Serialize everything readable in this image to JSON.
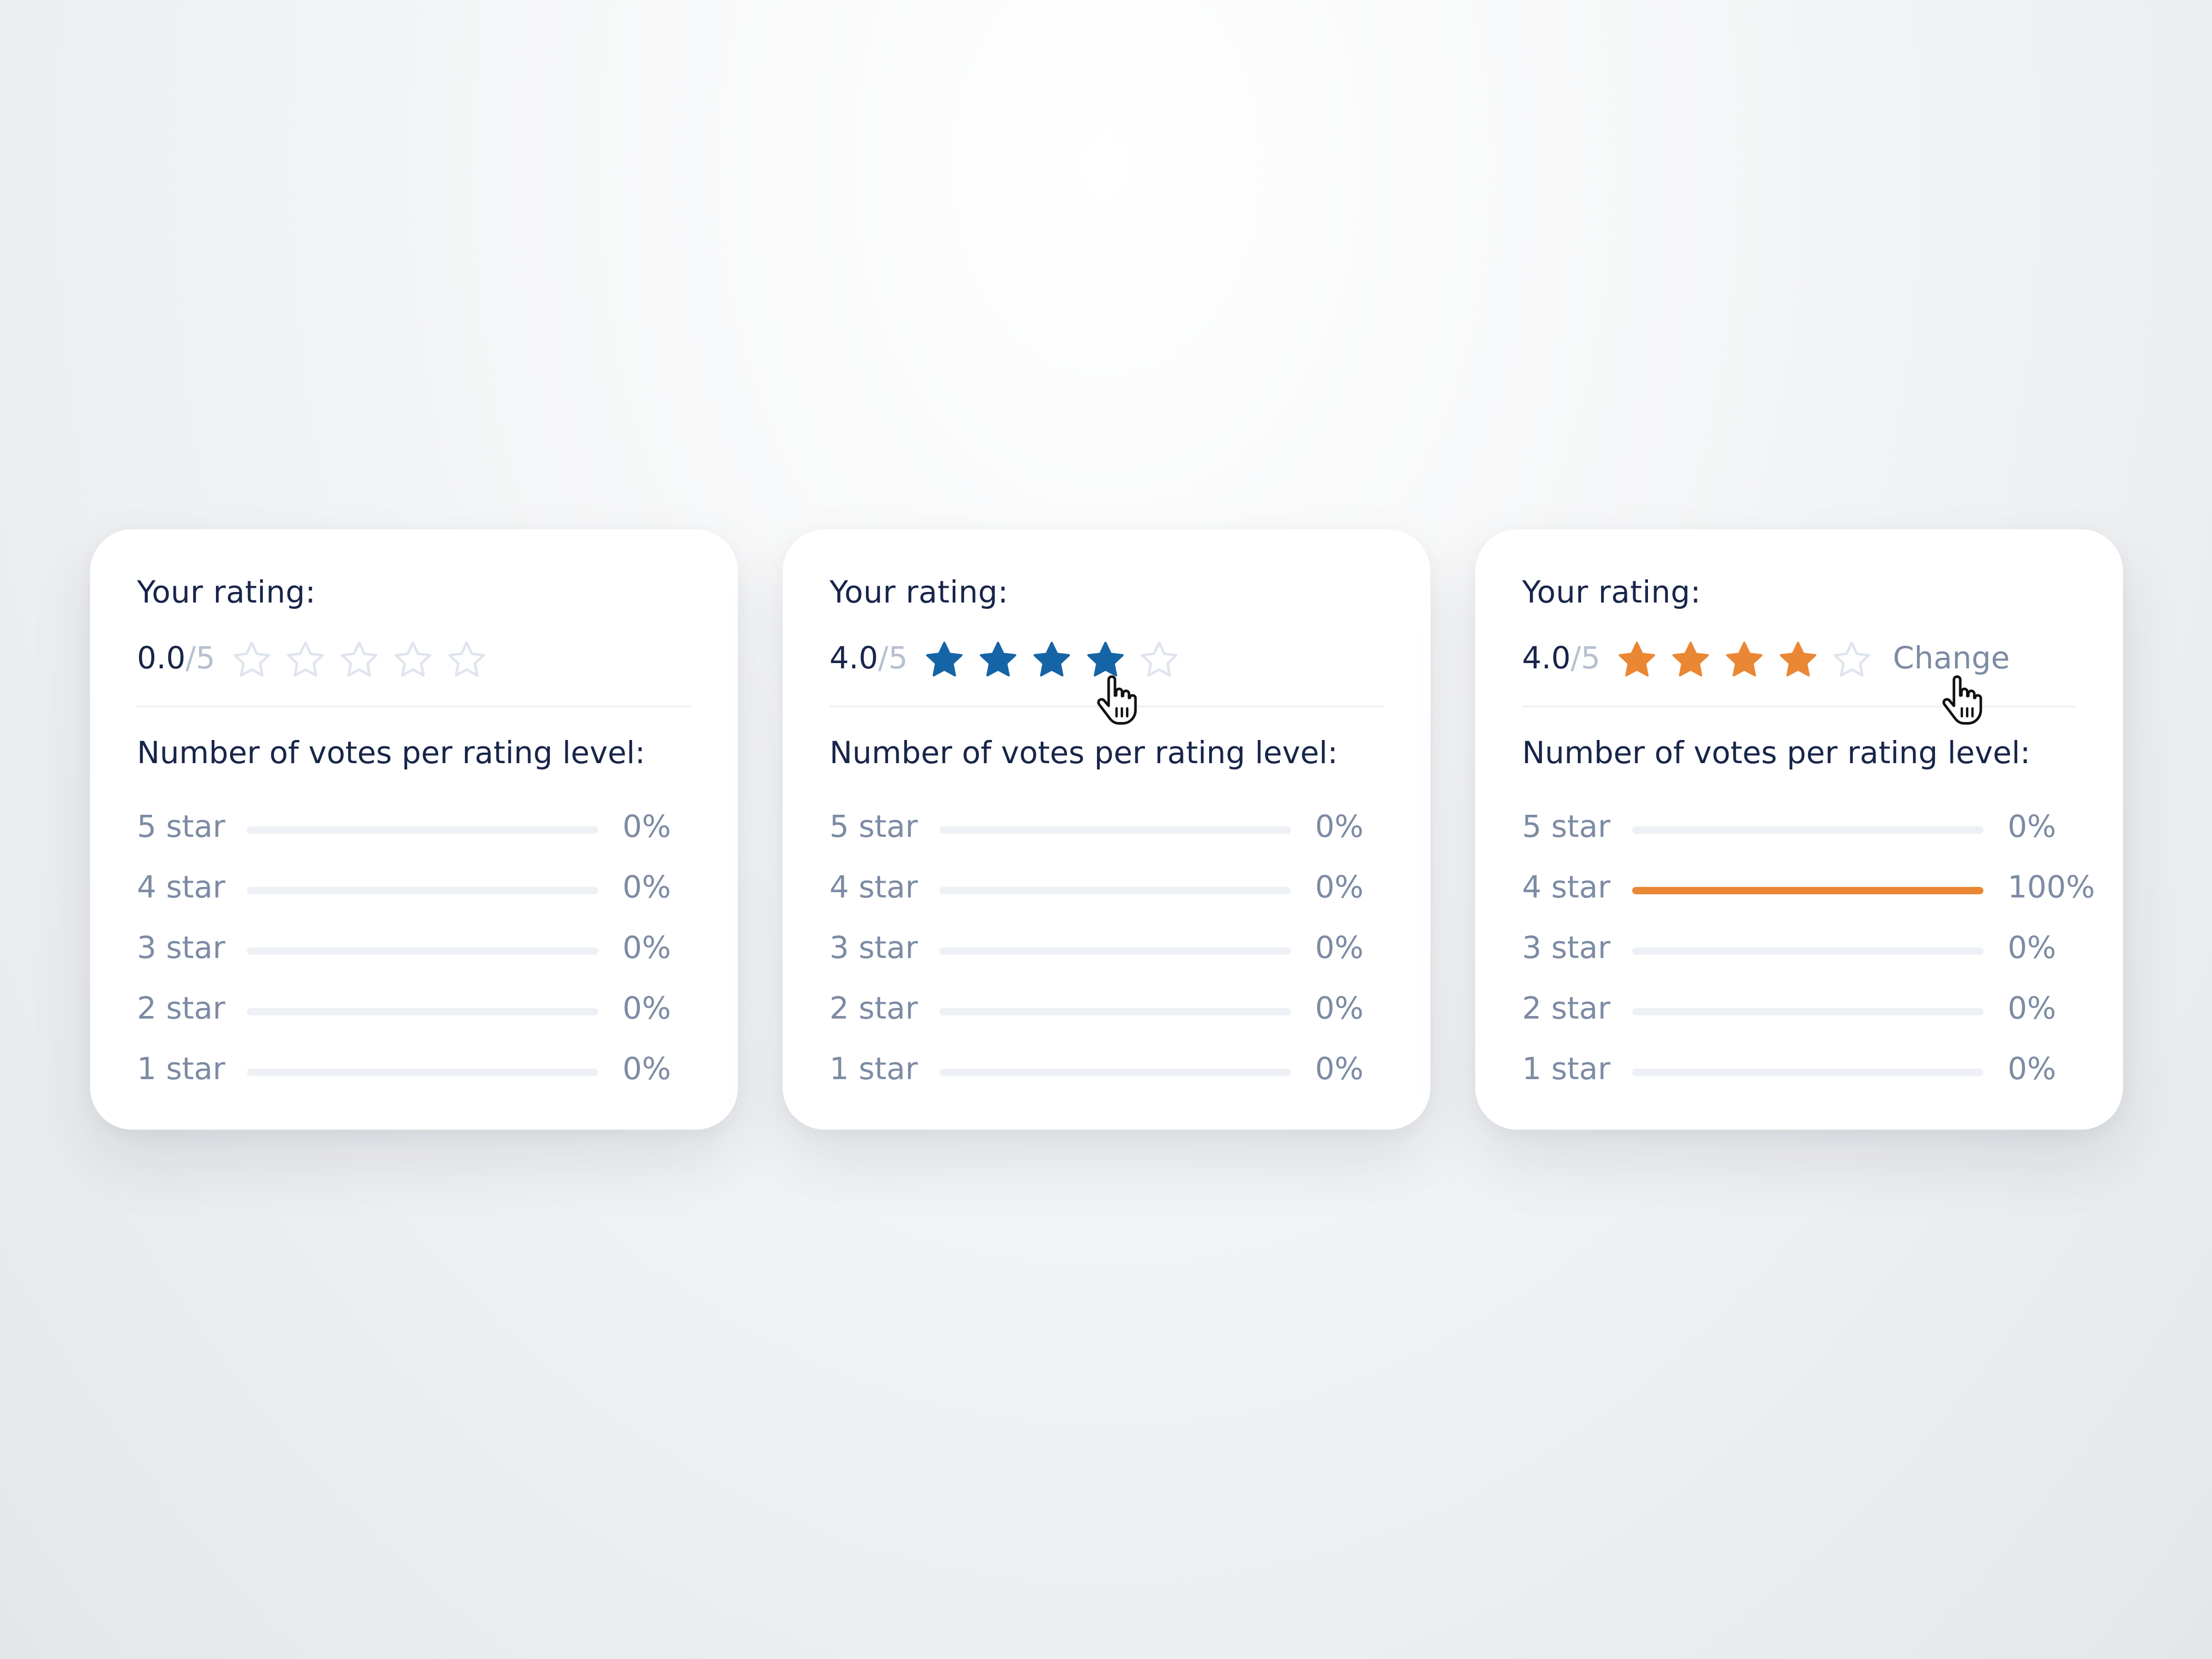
{
  "colors": {
    "blue": "#1565a6",
    "orange": "#ea8734",
    "empty_star": "#dfe5ee",
    "track": "#edf0f4"
  },
  "cards": [
    {
      "title": "Your rating:",
      "score": "0.0",
      "out_of": "/5",
      "rating": 0,
      "star_color": "#1565a6",
      "change_label": "",
      "votes_title": "Number of votes per rating level:",
      "rows": [
        {
          "label": "5 star",
          "pct": "0%",
          "fraction": 0
        },
        {
          "label": "4 star",
          "pct": "0%",
          "fraction": 0
        },
        {
          "label": "3 star",
          "pct": "0%",
          "fraction": 0
        },
        {
          "label": "2 star",
          "pct": "0%",
          "fraction": 0
        },
        {
          "label": "1 star",
          "pct": "0%",
          "fraction": 0
        }
      ]
    },
    {
      "title": "Your rating:",
      "score": "4.0",
      "out_of": "/5",
      "rating": 4,
      "star_color": "#1565a6",
      "change_label": "",
      "votes_title": "Number of votes per rating level:",
      "rows": [
        {
          "label": "5 star",
          "pct": "0%",
          "fraction": 0
        },
        {
          "label": "4 star",
          "pct": "0%",
          "fraction": 0
        },
        {
          "label": "3 star",
          "pct": "0%",
          "fraction": 0
        },
        {
          "label": "2 star",
          "pct": "0%",
          "fraction": 0
        },
        {
          "label": "1 star",
          "pct": "0%",
          "fraction": 0
        }
      ]
    },
    {
      "title": "Your rating:",
      "score": "4.0",
      "out_of": "/5",
      "rating": 4,
      "star_color": "#ea8734",
      "change_label": "Change",
      "votes_title": "Number of votes per rating level:",
      "rows": [
        {
          "label": "5 star",
          "pct": "0%",
          "fraction": 0
        },
        {
          "label": "4 star",
          "pct": "100%",
          "fraction": 1
        },
        {
          "label": "3 star",
          "pct": "0%",
          "fraction": 0
        },
        {
          "label": "2 star",
          "pct": "0%",
          "fraction": 0
        },
        {
          "label": "1 star",
          "pct": "0%",
          "fraction": 0
        }
      ]
    }
  ]
}
